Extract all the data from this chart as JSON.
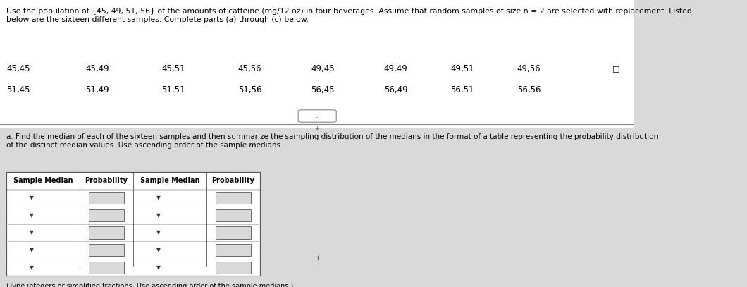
{
  "bg_color": "#d9d9d9",
  "white": "#ffffff",
  "header_text_color": "#000000",
  "intro_text": "Use the population of {45, 49, 51, 56} of the amounts of caffeine (mg/12 oz) in four beverages. Assume that random samples of size n = 2 are selected with replacement. Listed\nbelow are the sixteen different samples. Complete parts (a) through (c) below.",
  "samples_col1": [
    "45,45",
    "51,45"
  ],
  "samples_col2": [
    "45,49",
    "51,49"
  ],
  "samples_col3": [
    "45,51",
    "51,51"
  ],
  "samples_col4": [
    "45,56",
    "51,56"
  ],
  "samples_col5": [
    "49,45",
    "56,45"
  ],
  "samples_col6": [
    "49,49",
    "56,49"
  ],
  "samples_col7": [
    "49,51",
    "56,51"
  ],
  "samples_col8": [
    "49,56",
    "56,56"
  ],
  "part_a_text": "a. Find the median of each of the sixteen samples and then summarize the sampling distribution of the medians in the format of a table representing the probability distribution\nof the distinct median values. Use ascending order of the sample medians.",
  "table_headers": [
    "Sample Median",
    "Probability",
    "Sample Median",
    "Probability"
  ],
  "num_rows": 5,
  "footer_text": "(Type integers or simplified fractions. Use ascending order of the sample medians.)"
}
